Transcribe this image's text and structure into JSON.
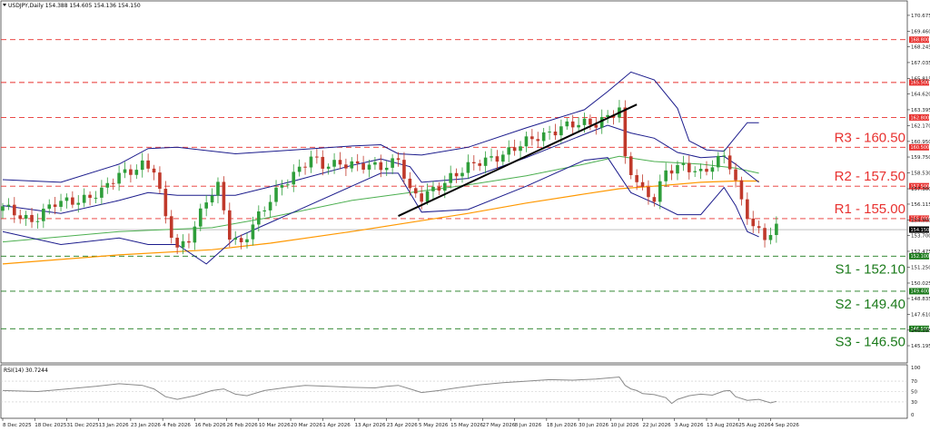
{
  "header": {
    "symbol_line": "USDJPY,Daily  154.388 154.605 154.136 154.150",
    "rsi_label": "RSI(14) 30.7244"
  },
  "colors": {
    "resistance": "#e8312f",
    "support": "#1a7a1a",
    "candle_up": "#2e9e3a",
    "candle_down": "#c0392b",
    "bollinger": "#1c1c8c",
    "ma_fast": "#4caf50",
    "ma_slow": "#ff9800",
    "trendline": "#000000",
    "rsi": "#8a8a8a"
  },
  "chart_data": {
    "type": "line",
    "instrument": "USDJPY",
    "timeframe": "Daily",
    "ylim": [
      145.195,
      171.3
    ],
    "y_ticks": [
      "170.675",
      "169.460",
      "168.245",
      "167.035",
      "165.815",
      "164.620",
      "163.395",
      "162.170",
      "160.950",
      "159.750",
      "158.530",
      "157.300",
      "156.115",
      "154.900",
      "153.700",
      "152.475",
      "151.250",
      "150.025",
      "148.835",
      "147.610",
      "146.395",
      "145.195"
    ],
    "x_labels": [
      "8 Dec 2025",
      "18 Dec 2025",
      "31 Dec 2025",
      "13 Jan 2026",
      "23 Jan 2026",
      "4 Feb 2026",
      "16 Feb 2026",
      "26 Feb 2026",
      "10 Mar 2026",
      "20 Mar 2026",
      "1 Apr 2026",
      "13 Apr 2026",
      "23 Apr 2026",
      "5 May 2026",
      "15 May 2026",
      "27 May 2026",
      "8 Jun 2026",
      "18 Jun 2026",
      "30 Jun 2026",
      "10 Jul 2026",
      "22 Jul 2026",
      "3 Aug 2026",
      "13 Aug 2026",
      "25 Aug 2026",
      "4 Sep 2026"
    ],
    "levels": [
      {
        "price": 168.8,
        "tag": "168.800",
        "label": ""
      },
      {
        "price": 165.5,
        "tag": "165.500",
        "label": ""
      },
      {
        "price": 162.8,
        "tag": "162.800",
        "label": ""
      },
      {
        "price": 160.5,
        "tag": "160.500",
        "label": "R3 - 160.50",
        "kind": "resistance"
      },
      {
        "price": 157.5,
        "tag": "157.500",
        "label": "R2 - 157.50",
        "kind": "resistance"
      },
      {
        "price": 155.0,
        "tag": "155.000",
        "label": "R1 - 155.00",
        "kind": "resistance"
      },
      {
        "price": 152.1,
        "tag": "152.100",
        "label": "S1 - 152.10",
        "kind": "support"
      },
      {
        "price": 149.4,
        "tag": "149.400",
        "label": "S2 - 149.40",
        "kind": "support"
      },
      {
        "price": 146.5,
        "tag": "146.500",
        "label": "S3 - 146.50",
        "kind": "support"
      }
    ],
    "current_price": {
      "price": 154.15,
      "tag": "154.150"
    },
    "close_anchors": [
      [
        0,
        155.8
      ],
      [
        5,
        154.9
      ],
      [
        9,
        156.1
      ],
      [
        13,
        156.5
      ],
      [
        17,
        157.0
      ],
      [
        20,
        158.4
      ],
      [
        24,
        159.2
      ],
      [
        26,
        158.7
      ],
      [
        28,
        155.0
      ],
      [
        30,
        152.7
      ],
      [
        32,
        153.6
      ],
      [
        35,
        156.3
      ],
      [
        37,
        157.4
      ],
      [
        39,
        153.8
      ],
      [
        41,
        153.1
      ],
      [
        43,
        154.5
      ],
      [
        45,
        155.7
      ],
      [
        48,
        157.7
      ],
      [
        51,
        158.9
      ],
      [
        53,
        159.6
      ],
      [
        55,
        159.0
      ],
      [
        58,
        159.4
      ],
      [
        60,
        159.2
      ],
      [
        63,
        158.9
      ],
      [
        66,
        159.1
      ],
      [
        68,
        159.8
      ],
      [
        70,
        157.0
      ],
      [
        72,
        156.5
      ],
      [
        74,
        157.2
      ],
      [
        77,
        158.3
      ],
      [
        80,
        158.9
      ],
      [
        84,
        159.7
      ],
      [
        88,
        160.4
      ],
      [
        92,
        161.3
      ],
      [
        96,
        162.1
      ],
      [
        99,
        162.2
      ],
      [
        102,
        162.4
      ],
      [
        104,
        163.0
      ],
      [
        106,
        163.4
      ],
      [
        107,
        159.4
      ],
      [
        108,
        158.5
      ],
      [
        110,
        157.1
      ],
      [
        112,
        156.7
      ],
      [
        114,
        158.7
      ],
      [
        117,
        158.9
      ],
      [
        120,
        158.6
      ],
      [
        122,
        159.3
      ],
      [
        124,
        159.8
      ],
      [
        125,
        159.0
      ],
      [
        127,
        156.2
      ],
      [
        129,
        154.5
      ],
      [
        131,
        153.7
      ],
      [
        133,
        154.2
      ]
    ],
    "bollinger_upper": [
      [
        0,
        158.0
      ],
      [
        10,
        157.8
      ],
      [
        20,
        159.2
      ],
      [
        25,
        160.4
      ],
      [
        30,
        160.5
      ],
      [
        40,
        160.0
      ],
      [
        50,
        160.3
      ],
      [
        60,
        160.6
      ],
      [
        65,
        160.7
      ],
      [
        68,
        160.0
      ],
      [
        72,
        159.9
      ],
      [
        80,
        160.5
      ],
      [
        90,
        162.0
      ],
      [
        100,
        163.4
      ],
      [
        104,
        164.8
      ],
      [
        108,
        166.3
      ],
      [
        112,
        165.7
      ],
      [
        116,
        163.5
      ],
      [
        118,
        161.0
      ],
      [
        121,
        160.3
      ],
      [
        124,
        160.2
      ],
      [
        126,
        161.3
      ],
      [
        128,
        162.4
      ],
      [
        130,
        162.4
      ]
    ],
    "bollinger_middle": [
      [
        0,
        156.0
      ],
      [
        10,
        155.4
      ],
      [
        20,
        156.4
      ],
      [
        25,
        157.0
      ],
      [
        30,
        156.8
      ],
      [
        40,
        156.8
      ],
      [
        50,
        157.9
      ],
      [
        60,
        159.1
      ],
      [
        65,
        159.6
      ],
      [
        70,
        159.0
      ],
      [
        72,
        157.8
      ],
      [
        80,
        158.1
      ],
      [
        90,
        159.7
      ],
      [
        100,
        161.5
      ],
      [
        104,
        162.2
      ],
      [
        108,
        161.6
      ],
      [
        112,
        161.2
      ],
      [
        116,
        160.1
      ],
      [
        120,
        159.7
      ],
      [
        124,
        159.8
      ],
      [
        126,
        159.2
      ],
      [
        128,
        158.5
      ],
      [
        130,
        157.8
      ]
    ],
    "bollinger_lower": [
      [
        0,
        154.0
      ],
      [
        10,
        153.0
      ],
      [
        20,
        153.5
      ],
      [
        25,
        153.0
      ],
      [
        30,
        153.0
      ],
      [
        35,
        151.5
      ],
      [
        40,
        153.5
      ],
      [
        45,
        154.5
      ],
      [
        50,
        155.5
      ],
      [
        60,
        157.5
      ],
      [
        65,
        158.5
      ],
      [
        68,
        158.5
      ],
      [
        72,
        155.5
      ],
      [
        80,
        155.7
      ],
      [
        90,
        157.5
      ],
      [
        100,
        159.5
      ],
      [
        104,
        159.7
      ],
      [
        108,
        157.0
      ],
      [
        112,
        156.2
      ],
      [
        116,
        155.3
      ],
      [
        120,
        155.3
      ],
      [
        124,
        157.4
      ],
      [
        126,
        156.0
      ],
      [
        128,
        154.0
      ],
      [
        130,
        153.6
      ]
    ],
    "moving_average_fast": [
      [
        0,
        153.2
      ],
      [
        20,
        154.0
      ],
      [
        36,
        154.3
      ],
      [
        46,
        155.1
      ],
      [
        60,
        156.4
      ],
      [
        70,
        157.0
      ],
      [
        80,
        157.6
      ],
      [
        90,
        158.3
      ],
      [
        100,
        159.2
      ],
      [
        106,
        159.8
      ],
      [
        112,
        159.4
      ],
      [
        120,
        159.2
      ],
      [
        126,
        158.9
      ],
      [
        130,
        158.5
      ]
    ],
    "moving_average_slow": [
      [
        0,
        151.5
      ],
      [
        20,
        152.2
      ],
      [
        36,
        152.6
      ],
      [
        46,
        153.1
      ],
      [
        60,
        154.0
      ],
      [
        70,
        154.7
      ],
      [
        80,
        155.4
      ],
      [
        90,
        156.2
      ],
      [
        100,
        156.9
      ],
      [
        106,
        157.3
      ],
      [
        112,
        157.5
      ],
      [
        120,
        157.8
      ],
      [
        126,
        157.9
      ],
      [
        130,
        157.9
      ]
    ],
    "trendline": [
      [
        68,
        155.2
      ],
      [
        109,
        163.8
      ]
    ],
    "rsi": {
      "ylim": [
        0,
        100
      ],
      "levels": [
        70,
        50,
        30
      ],
      "tick_labels": [
        "100",
        "70",
        "50",
        "30",
        "0"
      ],
      "values": [
        [
          0,
          52
        ],
        [
          6,
          50
        ],
        [
          10,
          54
        ],
        [
          16,
          60
        ],
        [
          20,
          65
        ],
        [
          24,
          62
        ],
        [
          26,
          55
        ],
        [
          28,
          40
        ],
        [
          30,
          35
        ],
        [
          33,
          42
        ],
        [
          36,
          52
        ],
        [
          38,
          55
        ],
        [
          40,
          45
        ],
        [
          42,
          42
        ],
        [
          45,
          52
        ],
        [
          49,
          58
        ],
        [
          52,
          62
        ],
        [
          56,
          60
        ],
        [
          60,
          58
        ],
        [
          64,
          57
        ],
        [
          66,
          60
        ],
        [
          68,
          62
        ],
        [
          70,
          55
        ],
        [
          72,
          48
        ],
        [
          75,
          52
        ],
        [
          78,
          57
        ],
        [
          82,
          63
        ],
        [
          86,
          67
        ],
        [
          90,
          70
        ],
        [
          94,
          73
        ],
        [
          98,
          72
        ],
        [
          102,
          74
        ],
        [
          106,
          78
        ],
        [
          107,
          62
        ],
        [
          108,
          55
        ],
        [
          109,
          52
        ],
        [
          110,
          46
        ],
        [
          112,
          44
        ],
        [
          114,
          38
        ],
        [
          115,
          27
        ],
        [
          116,
          35
        ],
        [
          118,
          42
        ],
        [
          120,
          45
        ],
        [
          122,
          43
        ],
        [
          124,
          51
        ],
        [
          125,
          52
        ],
        [
          126,
          40
        ],
        [
          128,
          33
        ],
        [
          130,
          35
        ],
        [
          132,
          28
        ],
        [
          133,
          31
        ]
      ]
    }
  }
}
